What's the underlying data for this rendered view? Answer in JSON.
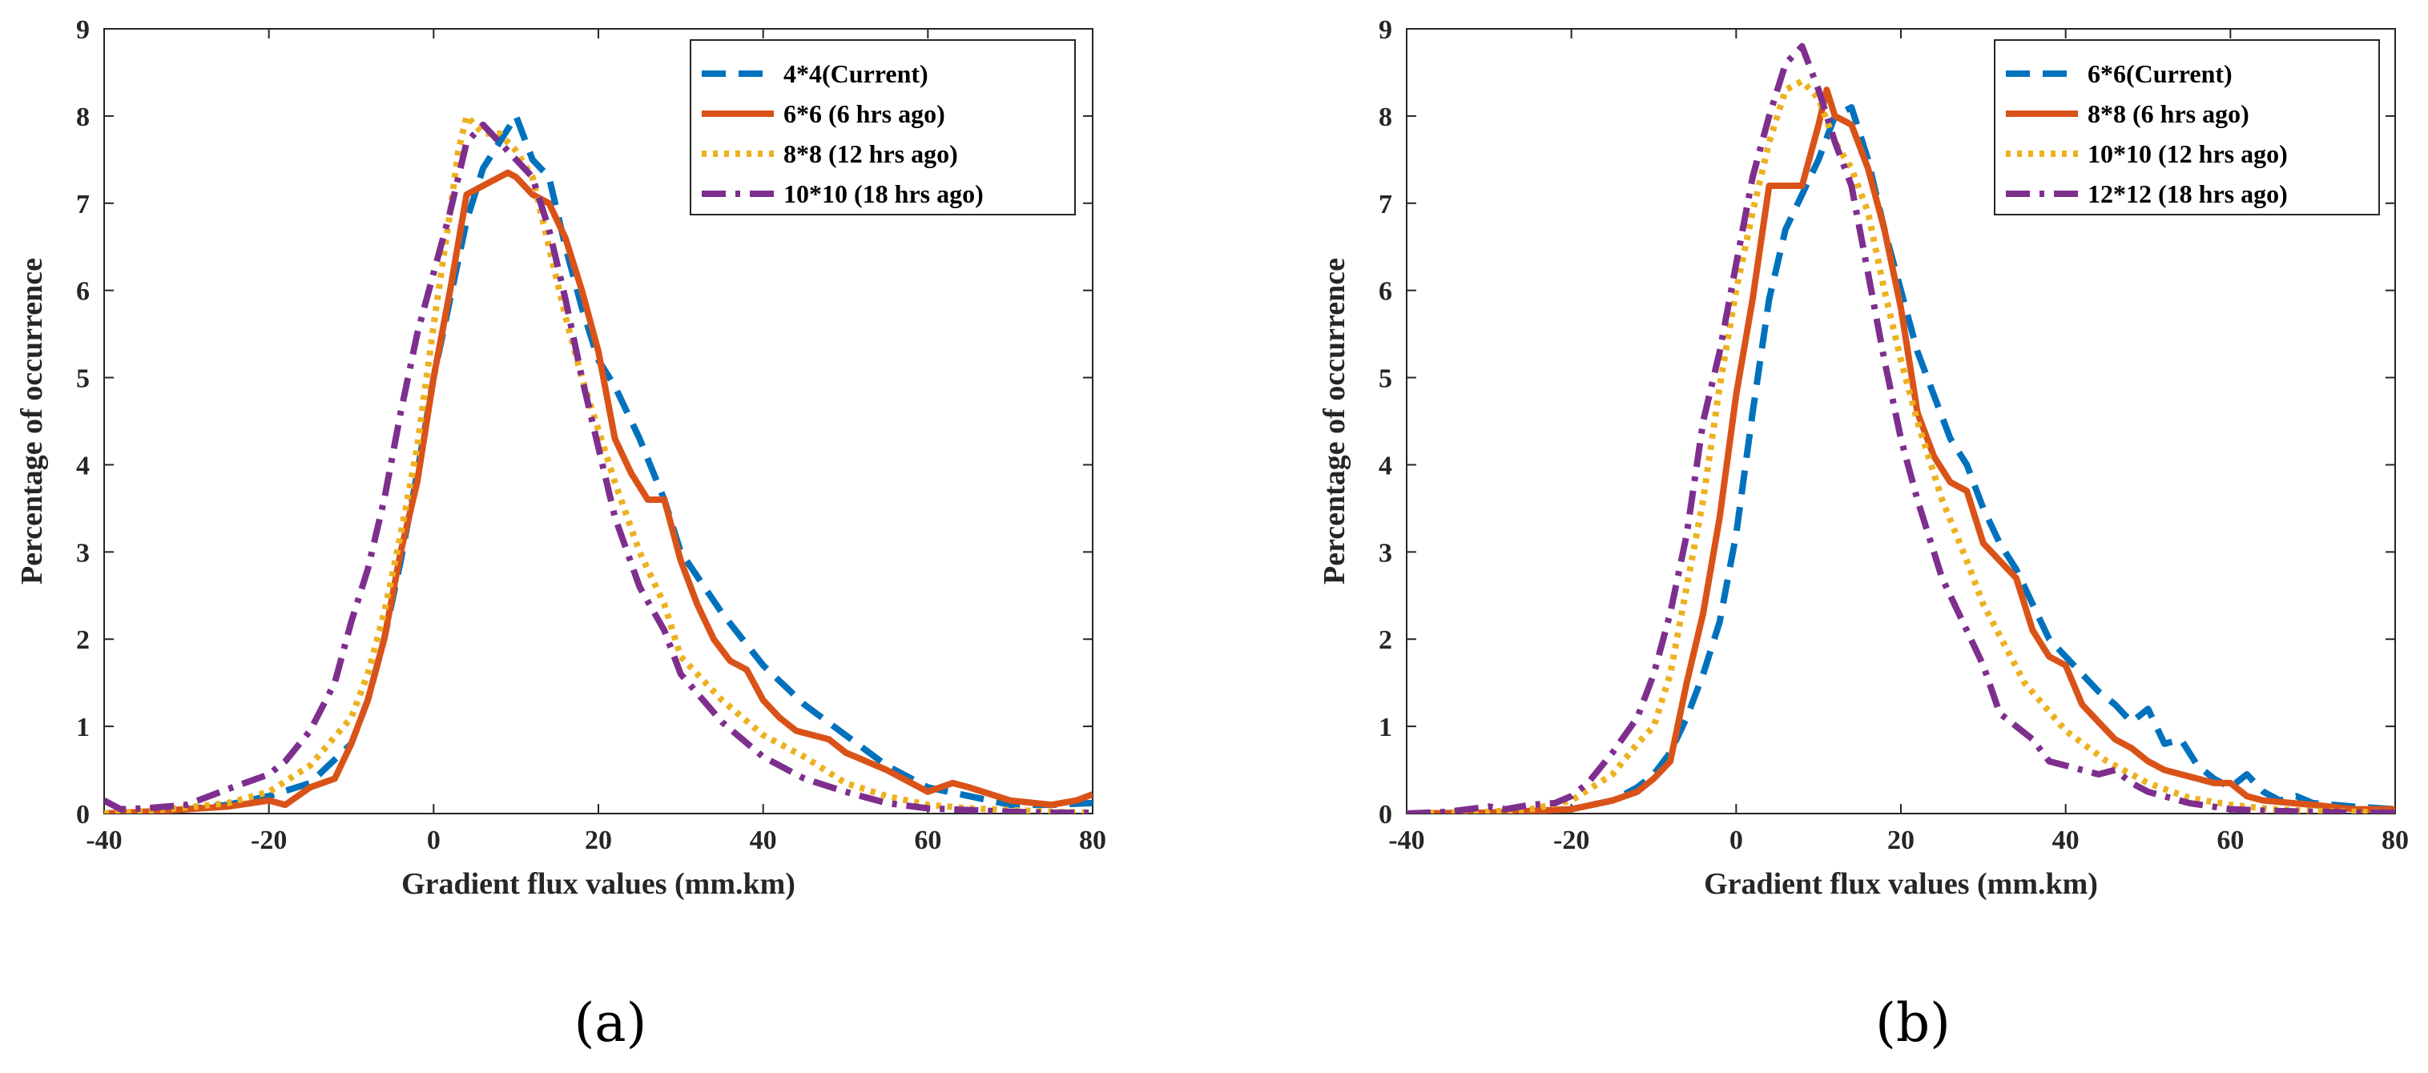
{
  "chart_data": [
    {
      "type": "line",
      "panel_label": "(a)",
      "xlabel": "Gradient flux values (mm.km)",
      "ylabel": "Percentage of occurrence",
      "xlim": [
        -40,
        80
      ],
      "ylim": [
        0,
        9
      ],
      "xticks": [
        -40,
        -20,
        0,
        20,
        40,
        60,
        80
      ],
      "yticks": [
        0,
        1,
        2,
        3,
        4,
        5,
        6,
        7,
        8,
        9
      ],
      "grid": false,
      "legend_position": "top-right",
      "series": [
        {
          "name": "4*4(Current)",
          "color": "#0072BD",
          "style": "dashed",
          "x": [
            -40,
            -35,
            -30,
            -25,
            -20,
            -15,
            -10,
            -8,
            -6,
            -4,
            -2,
            0,
            2,
            4,
            6,
            8,
            10,
            12,
            14,
            16,
            18,
            20,
            22,
            25,
            28,
            30,
            35,
            40,
            45,
            50,
            55,
            60,
            65,
            70,
            75,
            80
          ],
          "y": [
            0.0,
            0.02,
            0.05,
            0.1,
            0.2,
            0.35,
            0.8,
            1.3,
            2.0,
            2.9,
            3.9,
            5.0,
            5.9,
            6.8,
            7.4,
            7.7,
            8.0,
            7.5,
            7.3,
            6.5,
            5.8,
            5.2,
            4.9,
            4.3,
            3.6,
            3.0,
            2.3,
            1.7,
            1.25,
            0.9,
            0.55,
            0.3,
            0.2,
            0.1,
            0.1,
            0.12
          ]
        },
        {
          "name": "6*6 (6 hrs ago)",
          "color": "#D95319",
          "style": "solid",
          "x": [
            -40,
            -35,
            -30,
            -25,
            -20,
            -18,
            -15,
            -12,
            -10,
            -8,
            -6,
            -4,
            -2,
            0,
            2,
            4,
            6,
            8,
            9,
            10,
            12,
            14,
            16,
            18,
            20,
            22,
            24,
            26,
            28,
            30,
            32,
            34,
            36,
            38,
            40,
            42,
            44,
            46,
            48,
            50,
            55,
            60,
            63,
            65,
            70,
            75,
            78,
            80
          ],
          "y": [
            0.0,
            0.02,
            0.05,
            0.08,
            0.15,
            0.1,
            0.3,
            0.4,
            0.8,
            1.3,
            2.0,
            3.0,
            3.8,
            5.0,
            6.0,
            7.1,
            7.2,
            7.3,
            7.35,
            7.3,
            7.1,
            7.0,
            6.6,
            6.0,
            5.3,
            4.3,
            3.9,
            3.6,
            3.6,
            2.9,
            2.4,
            2.0,
            1.75,
            1.65,
            1.3,
            1.1,
            0.95,
            0.9,
            0.85,
            0.7,
            0.5,
            0.25,
            0.35,
            0.3,
            0.15,
            0.1,
            0.15,
            0.22
          ]
        },
        {
          "name": "8*8 (12 hrs ago)",
          "color": "#EDB120",
          "style": "dotted",
          "x": [
            -40,
            -35,
            -30,
            -25,
            -20,
            -15,
            -10,
            -8,
            -6,
            -4,
            -2,
            0,
            2,
            3,
            4,
            6,
            8,
            10,
            12,
            14,
            16,
            18,
            20,
            22,
            25,
            28,
            30,
            35,
            40,
            45,
            50,
            55,
            60,
            65,
            70,
            75,
            80
          ],
          "y": [
            0.0,
            0.03,
            0.07,
            0.12,
            0.25,
            0.55,
            1.1,
            1.6,
            2.3,
            3.2,
            4.2,
            5.6,
            6.9,
            7.6,
            8.0,
            7.8,
            7.8,
            7.6,
            7.3,
            6.5,
            5.7,
            5.0,
            4.4,
            3.8,
            3.0,
            2.4,
            1.8,
            1.3,
            0.9,
            0.65,
            0.35,
            0.2,
            0.1,
            0.06,
            0.04,
            0.02,
            0.01
          ]
        },
        {
          "name": "10*10 (18 hrs ago)",
          "color": "#7E2F8E",
          "style": "dash-dot",
          "x": [
            -40,
            -38,
            -35,
            -30,
            -25,
            -20,
            -18,
            -15,
            -12,
            -10,
            -8,
            -6,
            -4,
            -2,
            0,
            2,
            4,
            5,
            6,
            8,
            10,
            12,
            14,
            16,
            18,
            20,
            22,
            25,
            28,
            30,
            35,
            40,
            45,
            50,
            55,
            60,
            65,
            70,
            75,
            80
          ],
          "y": [
            0.15,
            0.05,
            0.06,
            0.1,
            0.28,
            0.45,
            0.6,
            0.95,
            1.5,
            2.2,
            2.8,
            3.6,
            4.6,
            5.5,
            6.2,
            6.9,
            7.7,
            7.8,
            7.9,
            7.7,
            7.5,
            7.3,
            6.7,
            5.9,
            5.0,
            4.2,
            3.4,
            2.6,
            2.1,
            1.6,
            1.05,
            0.65,
            0.4,
            0.25,
            0.12,
            0.06,
            0.04,
            0.02,
            0.01,
            0.01
          ]
        }
      ]
    },
    {
      "type": "line",
      "panel_label": "(b)",
      "xlabel": "Gradient flux values (mm.km)",
      "ylabel": "Percentage of occurrence",
      "xlim": [
        -40,
        80
      ],
      "ylim": [
        0,
        9
      ],
      "xticks": [
        -40,
        -20,
        0,
        20,
        40,
        60,
        80
      ],
      "yticks": [
        0,
        1,
        2,
        3,
        4,
        5,
        6,
        7,
        8,
        9
      ],
      "grid": false,
      "legend_position": "top-right",
      "series": [
        {
          "name": "6*6(Current)",
          "color": "#0072BD",
          "style": "dashed",
          "x": [
            -40,
            -30,
            -20,
            -15,
            -12,
            -10,
            -8,
            -6,
            -4,
            -2,
            0,
            2,
            4,
            6,
            8,
            10,
            12,
            14,
            16,
            18,
            20,
            22,
            24,
            26,
            28,
            30,
            32,
            34,
            36,
            38,
            40,
            42,
            44,
            46,
            48,
            50,
            52,
            54,
            56,
            58,
            60,
            62,
            64,
            66,
            68,
            70,
            75,
            80
          ],
          "y": [
            0.0,
            0.01,
            0.05,
            0.15,
            0.3,
            0.45,
            0.7,
            1.1,
            1.6,
            2.2,
            3.2,
            4.6,
            5.9,
            6.7,
            7.1,
            7.5,
            8.0,
            8.1,
            7.5,
            6.7,
            6.0,
            5.3,
            4.8,
            4.3,
            4.0,
            3.5,
            3.1,
            2.8,
            2.4,
            2.0,
            1.8,
            1.6,
            1.4,
            1.25,
            1.05,
            1.2,
            0.8,
            0.85,
            0.55,
            0.4,
            0.3,
            0.45,
            0.25,
            0.15,
            0.2,
            0.12,
            0.08,
            0.05
          ]
        },
        {
          "name": "8*8 (6 hrs ago)",
          "color": "#D95319",
          "style": "solid",
          "x": [
            -40,
            -30,
            -20,
            -15,
            -12,
            -10,
            -8,
            -6,
            -4,
            -2,
            0,
            2,
            4,
            6,
            8,
            10,
            11,
            12,
            14,
            16,
            18,
            20,
            22,
            24,
            26,
            28,
            30,
            32,
            34,
            36,
            38,
            40,
            42,
            44,
            46,
            48,
            50,
            52,
            54,
            56,
            58,
            60,
            62,
            64,
            70,
            75,
            80
          ],
          "y": [
            0.0,
            0.01,
            0.05,
            0.15,
            0.25,
            0.4,
            0.6,
            1.5,
            2.3,
            3.4,
            4.8,
            5.9,
            7.2,
            7.2,
            7.2,
            7.9,
            8.3,
            8.0,
            7.9,
            7.4,
            6.7,
            5.8,
            4.6,
            4.1,
            3.8,
            3.7,
            3.1,
            2.9,
            2.7,
            2.1,
            1.8,
            1.7,
            1.25,
            1.05,
            0.85,
            0.75,
            0.6,
            0.5,
            0.45,
            0.4,
            0.35,
            0.35,
            0.2,
            0.15,
            0.1,
            0.05,
            0.05
          ]
        },
        {
          "name": "10*10 (12 hrs ago)",
          "color": "#EDB120",
          "style": "dotted",
          "x": [
            -40,
            -30,
            -25,
            -20,
            -15,
            -12,
            -10,
            -8,
            -6,
            -4,
            -2,
            0,
            2,
            4,
            6,
            8,
            10,
            12,
            14,
            16,
            18,
            20,
            22,
            25,
            28,
            30,
            35,
            40,
            45,
            50,
            55,
            60,
            65,
            70,
            75,
            80
          ],
          "y": [
            0.0,
            0.02,
            0.05,
            0.15,
            0.45,
            0.8,
            1.0,
            1.6,
            2.6,
            3.6,
            4.9,
            6.0,
            6.9,
            7.7,
            8.3,
            8.4,
            8.2,
            7.7,
            7.4,
            6.9,
            6.0,
            5.2,
            4.5,
            3.6,
            2.9,
            2.4,
            1.5,
            0.95,
            0.6,
            0.35,
            0.18,
            0.1,
            0.05,
            0.03,
            0.02,
            0.01
          ]
        },
        {
          "name": "12*12 (18 hrs ago)",
          "color": "#7E2F8E",
          "style": "dash-dot",
          "x": [
            -40,
            -35,
            -30,
            -28,
            -25,
            -22,
            -20,
            -18,
            -15,
            -12,
            -10,
            -8,
            -6,
            -4,
            -2,
            0,
            2,
            4,
            6,
            8,
            10,
            12,
            14,
            16,
            18,
            20,
            22,
            25,
            28,
            30,
            32,
            34,
            36,
            38,
            40,
            42,
            44,
            46,
            48,
            50,
            55,
            60,
            65,
            70,
            75,
            80
          ],
          "y": [
            0.0,
            0.02,
            0.08,
            0.05,
            0.1,
            0.12,
            0.2,
            0.35,
            0.7,
            1.1,
            1.6,
            2.3,
            3.2,
            4.5,
            5.3,
            6.3,
            7.3,
            8.0,
            8.6,
            8.8,
            8.3,
            7.7,
            7.2,
            6.2,
            5.2,
            4.3,
            3.6,
            2.7,
            2.1,
            1.7,
            1.15,
            1.0,
            0.85,
            0.6,
            0.55,
            0.5,
            0.45,
            0.5,
            0.35,
            0.25,
            0.12,
            0.05,
            0.03,
            0.02,
            0.01,
            0.01
          ]
        }
      ]
    }
  ]
}
